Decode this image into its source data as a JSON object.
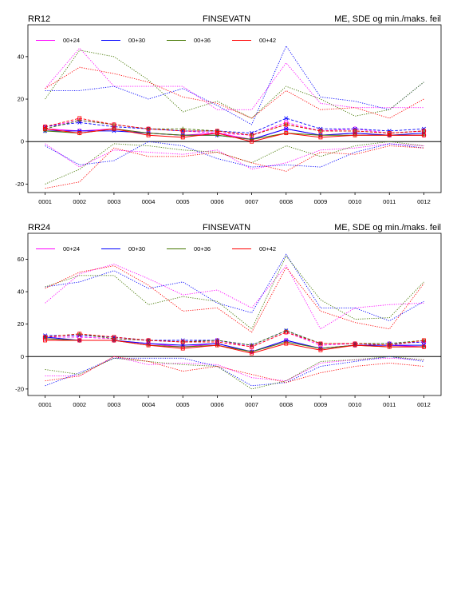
{
  "page": {
    "background": "#ffffff"
  },
  "chart_data": [
    {
      "type": "line",
      "id": "RR12",
      "title_left": "RR12",
      "title_center": "FINSEVATN",
      "title_right": "ME, SDE og min./maks. feil",
      "categories": [
        "0001",
        "0002",
        "0003",
        "0004",
        "0005",
        "0006",
        "0007",
        "0008",
        "0009",
        "0010",
        "0011",
        "0012"
      ],
      "ylim": [
        -24,
        55
      ],
      "yticks": [
        -20,
        0,
        20,
        40
      ],
      "zero_line": true,
      "legend_placement": "top-left",
      "series": [
        {
          "name": "00+24",
          "color": "#ff00ff",
          "max": [
            25,
            44,
            26,
            26,
            26,
            15,
            15,
            37,
            18,
            16,
            16,
            16
          ],
          "sde": [
            7,
            10,
            8,
            6,
            5,
            4,
            3,
            9,
            5,
            6,
            4,
            5
          ],
          "me": [
            6,
            5,
            6,
            4,
            3,
            4,
            1,
            6,
            3,
            4,
            3,
            3
          ],
          "min": [
            -1,
            -12,
            -4,
            -5,
            -6,
            -4,
            -13,
            -10,
            -4,
            -3,
            -1,
            -2
          ]
        },
        {
          "name": "00+30",
          "color": "#0000ff",
          "max": [
            24,
            24,
            26,
            20,
            25,
            17,
            8,
            45,
            21,
            19,
            15,
            28
          ],
          "sde": [
            7,
            9,
            7,
            6,
            5,
            5,
            4,
            11,
            6,
            6,
            5,
            6
          ],
          "me": [
            5,
            5,
            5,
            4,
            3,
            3,
            1,
            6,
            3,
            4,
            3,
            4
          ],
          "min": [
            -2,
            -11,
            -9,
            0,
            -2,
            -8,
            -12,
            -11,
            -12,
            -5,
            -1,
            -3
          ]
        },
        {
          "name": "00+36",
          "color": "#447700",
          "max": [
            20,
            43,
            40,
            29,
            14,
            19,
            11,
            26,
            20,
            12,
            15,
            28
          ],
          "sde": [
            6,
            10,
            8,
            6,
            6,
            5,
            3,
            8,
            5,
            5,
            4,
            5
          ],
          "me": [
            5,
            4,
            6,
            4,
            3,
            3,
            1,
            4,
            3,
            3,
            3,
            3
          ],
          "min": [
            -20,
            -13,
            -1,
            -2,
            -4,
            -5,
            -10,
            -2,
            -7,
            -2,
            0,
            -2
          ]
        },
        {
          "name": "00+42",
          "color": "#ff0000",
          "max": [
            25,
            35,
            32,
            28,
            21,
            18,
            11,
            24,
            15,
            16,
            11,
            20
          ],
          "sde": [
            7,
            11,
            8,
            6,
            5,
            5,
            3,
            8,
            5,
            5,
            4,
            5
          ],
          "me": [
            6,
            4,
            6,
            3,
            2,
            4,
            0,
            4,
            2,
            3,
            3,
            3
          ],
          "min": [
            -22,
            -19,
            -3,
            -7,
            -7,
            -5,
            -10,
            -14,
            -5,
            -6,
            -2,
            -3
          ]
        }
      ]
    },
    {
      "type": "line",
      "id": "RR24",
      "title_left": "RR24",
      "title_center": "FINSEVATN",
      "title_right": "ME, SDE og min./maks. feil",
      "categories": [
        "0001",
        "0002",
        "0003",
        "0004",
        "0005",
        "0006",
        "0007",
        "0008",
        "0009",
        "0010",
        "0011",
        "0012"
      ],
      "ylim": [
        -24,
        76
      ],
      "yticks": [
        -20,
        0,
        20,
        40,
        60
      ],
      "zero_line": true,
      "legend_placement": "top-left",
      "series": [
        {
          "name": "00+24",
          "color": "#ff00ff",
          "max": [
            33,
            51,
            57,
            48,
            38,
            41,
            30,
            56,
            17,
            30,
            32,
            33
          ],
          "sde": [
            12,
            12,
            11,
            10,
            9,
            10,
            6,
            15,
            7,
            8,
            8,
            9
          ],
          "me": [
            11,
            10,
            10,
            8,
            6,
            8,
            3,
            10,
            5,
            7,
            7,
            6
          ],
          "min": [
            -12,
            -12,
            0,
            -5,
            -4,
            -5,
            -13,
            -15,
            -4,
            -2,
            -1,
            -2
          ]
        },
        {
          "name": "00+30",
          "color": "#0000ff",
          "max": [
            43,
            46,
            53,
            42,
            46,
            33,
            27,
            63,
            30,
            30,
            22,
            34
          ],
          "sde": [
            13,
            13,
            12,
            10,
            10,
            10,
            7,
            16,
            8,
            8,
            8,
            9
          ],
          "me": [
            12,
            10,
            10,
            8,
            7,
            8,
            3,
            10,
            5,
            7,
            7,
            7
          ],
          "min": [
            -18,
            -10,
            -1,
            -1,
            -1,
            -6,
            -18,
            -16,
            -6,
            -3,
            0,
            -3
          ]
        },
        {
          "name": "00+36",
          "color": "#447700",
          "max": [
            43,
            50,
            50,
            32,
            37,
            34,
            17,
            62,
            35,
            23,
            24,
            46
          ],
          "sde": [
            12,
            14,
            11,
            10,
            9,
            10,
            7,
            16,
            8,
            8,
            8,
            10
          ],
          "me": [
            11,
            10,
            10,
            7,
            6,
            7,
            3,
            9,
            5,
            7,
            6,
            6
          ],
          "min": [
            -8,
            -11,
            -1,
            -3,
            -5,
            -6,
            -20,
            -15,
            -3,
            -2,
            0,
            -2
          ]
        },
        {
          "name": "00+42",
          "color": "#ff0000",
          "max": [
            42,
            52,
            56,
            44,
            28,
            30,
            15,
            55,
            28,
            21,
            17,
            45
          ],
          "sde": [
            12,
            14,
            12,
            10,
            9,
            9,
            6,
            15,
            8,
            8,
            7,
            10
          ],
          "me": [
            10,
            10,
            10,
            7,
            5,
            7,
            2,
            8,
            4,
            7,
            6,
            6
          ],
          "min": [
            -15,
            -12,
            0,
            -3,
            -9,
            -6,
            -11,
            -16,
            -10,
            -6,
            -4,
            -6
          ]
        }
      ]
    }
  ]
}
